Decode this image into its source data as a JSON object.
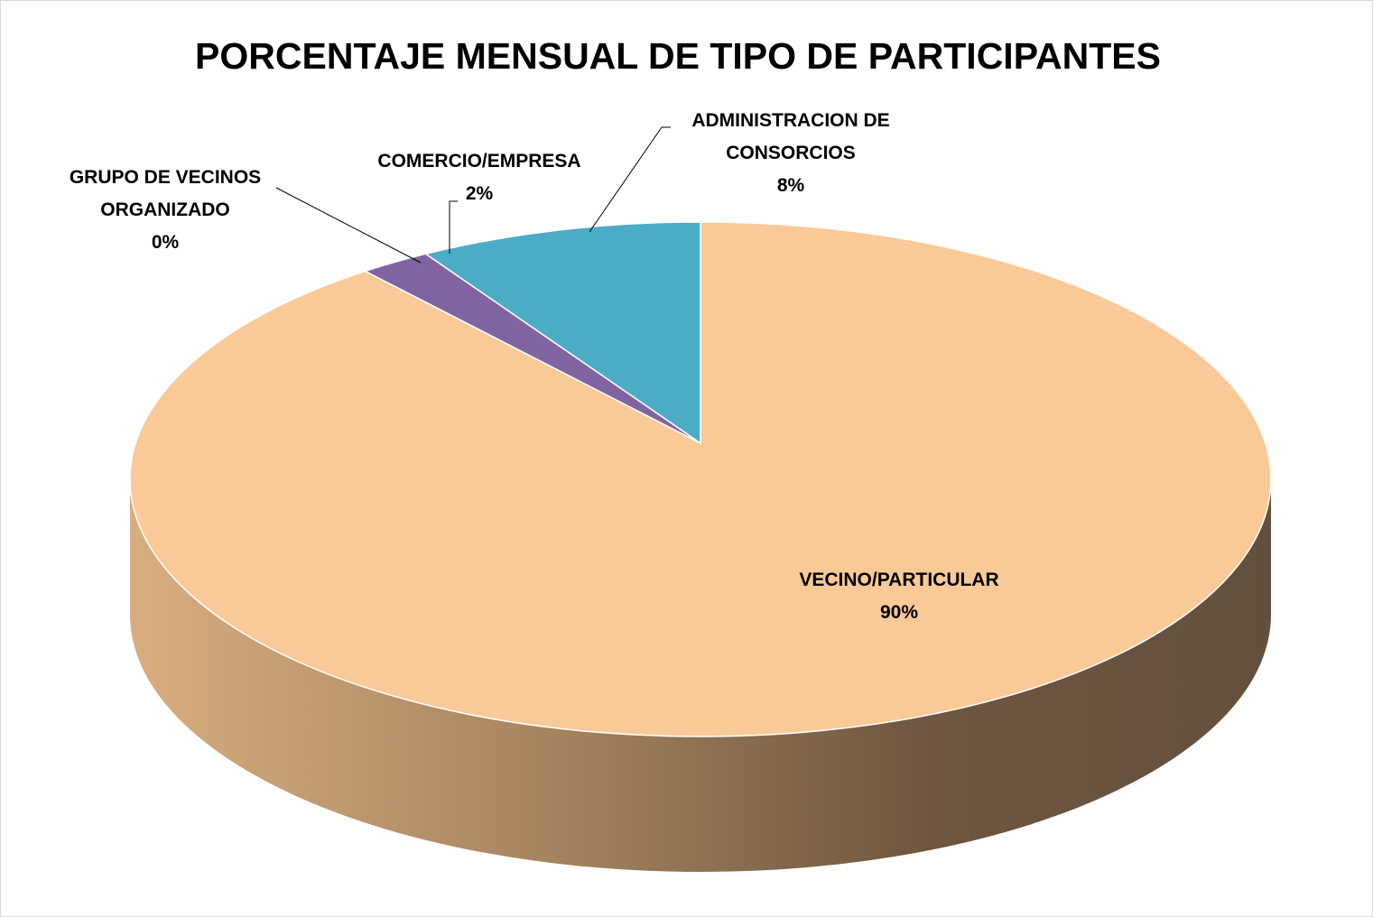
{
  "chart_data": {
    "type": "pie3d",
    "title": "PORCENTAJE MENSUAL DE TIPO DE PARTICIPANTES",
    "categories": [
      "VECINO/PARTICULAR",
      "GRUPO DE VECINOS ORGANIZADO",
      "COMERCIO/EMPRESA",
      "ADMINISTRACION DE CONSORCIOS"
    ],
    "values": [
      90,
      0,
      2,
      8
    ],
    "value_labels": [
      "90%",
      "0%",
      "2%",
      "8%"
    ],
    "colors": [
      "#fac998",
      "#c0504d",
      "#8064a2",
      "#4bacc6"
    ]
  }
}
